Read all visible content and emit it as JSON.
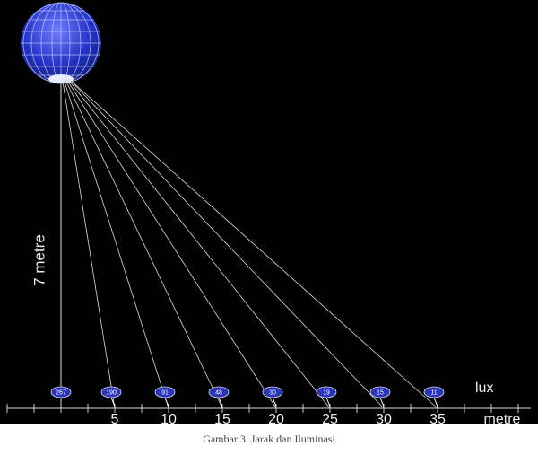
{
  "height_label": "7 metre",
  "lux_label": "lux",
  "distance_unit": "metre",
  "distance_labels": [
    "5",
    "10",
    "15",
    "20",
    "25",
    "30",
    "35"
  ],
  "lux_values": [
    "267",
    "190",
    "91",
    "48",
    "30",
    "19",
    "15",
    "11"
  ],
  "caption": "Gambar 3. Jarak dan Iluminasi"
}
